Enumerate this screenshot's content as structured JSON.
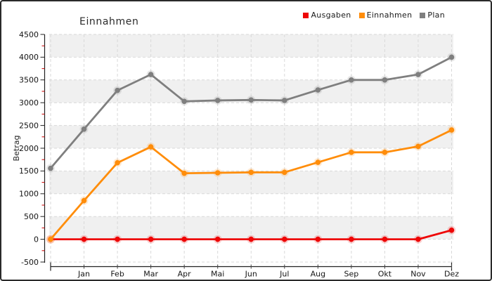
{
  "window": {
    "background": "#ffffff",
    "border_color": "#2a2a2a"
  },
  "chart_data": {
    "type": "line",
    "title": "Einnahmen",
    "xlabel": "",
    "ylabel": "Betrag",
    "ylim": [
      -500,
      4500
    ],
    "ytick_step": 500,
    "yticks": [
      4500,
      4000,
      3500,
      3000,
      2500,
      2000,
      1500,
      1000,
      500,
      0,
      -500
    ],
    "categories": [
      "",
      "Jan",
      "Feb",
      "Mar",
      "Apr",
      "Mai",
      "Jun",
      "Jul",
      "Aug",
      "Sep",
      "Okt",
      "Nov",
      "Dez"
    ],
    "series": [
      {
        "name": "Ausgaben",
        "color": "#ee0505",
        "values": [
          0,
          0,
          0,
          0,
          0,
          0,
          0,
          0,
          0,
          0,
          0,
          0,
          200
        ]
      },
      {
        "name": "Einnahmen",
        "color": "#ff8d0a",
        "values": [
          0,
          850,
          1680,
          2030,
          1450,
          1460,
          1470,
          1470,
          1690,
          1910,
          1910,
          2040,
          2400
        ]
      },
      {
        "name": "Plan",
        "color": "#7f7f7f",
        "values": [
          1560,
          2420,
          3270,
          3620,
          3030,
          3050,
          3060,
          3050,
          3280,
          3500,
          3500,
          3620,
          4000
        ]
      }
    ],
    "grid": "dashed",
    "legend_position": "top-right",
    "plot_bands": "alternating"
  },
  "colors": {
    "band_gray": "#f0f0f0",
    "gridline": "#d9d9d9",
    "axis_line": "#222222",
    "minor_tick": "#cc0000",
    "tick_label": "#141414"
  }
}
